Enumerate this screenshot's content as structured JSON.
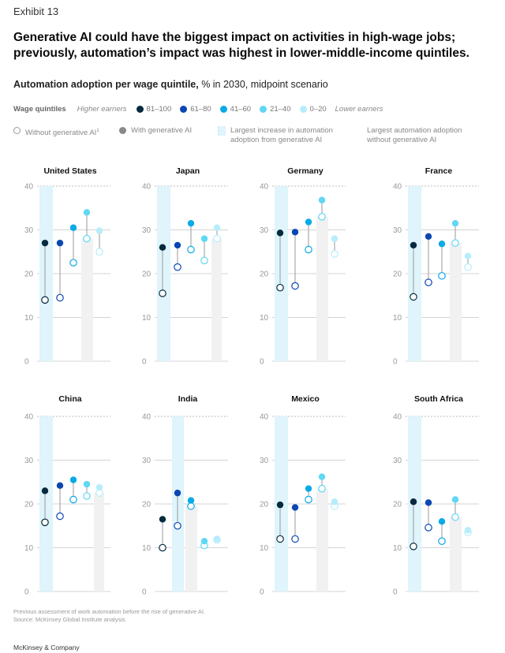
{
  "exhibit": "Exhibit 13",
  "title": "Generative AI could have the biggest impact on activities in high-wage jobs; previously, automation’s impact was highest in lower-middle-income quintiles.",
  "subtitle_bold": "Automation adoption per wage quintile,",
  "subtitle_rest": " % in 2030, midpoint scenario",
  "legend": {
    "label": "Wage quintiles",
    "higher": "Higher earners",
    "lower": "Lower earners",
    "quintiles": [
      {
        "label": "81–100",
        "color": "#062a3e"
      },
      {
        "label": "61–80",
        "color": "#0a47b4"
      },
      {
        "label": "41–60",
        "color": "#0aaae6"
      },
      {
        "label": "21–40",
        "color": "#5fd7f5"
      },
      {
        "label": "0–20",
        "color": "#b6edfb"
      }
    ],
    "without_label": "Without generative AI",
    "without_sup": "1",
    "with_label": "With generative AI",
    "largest_increase_1": "Largest increase in automation",
    "largest_increase_2": "adoption from generative AI",
    "largest_without_1": "Largest automation adoption",
    "largest_without_2": "without generative AI"
  },
  "footnote_1": "Previous assessment of work automation before the rise of generative AI.",
  "footnote_2": "Source: McKinsey Global Institute analysis",
  "brand": "McKinsey & Company",
  "chart_data": {
    "type": "scatter",
    "y_axis": {
      "min": 0,
      "max": 40,
      "ticks": [
        0,
        10,
        20,
        30,
        40
      ]
    },
    "series_names": [
      "81–100",
      "61–80",
      "41–60",
      "21–40",
      "0–20"
    ],
    "countries": [
      {
        "name": "United States",
        "without": [
          14,
          14.5,
          22.5,
          28,
          25
        ],
        "with": [
          27,
          27,
          30.5,
          34,
          29.8
        ],
        "largest_increase": 0,
        "largest_without": 3
      },
      {
        "name": "Japan",
        "without": [
          15.5,
          21.5,
          25.5,
          23,
          28
        ],
        "with": [
          26,
          26.5,
          31.5,
          28,
          30.5
        ],
        "largest_increase": 0,
        "largest_without": 4
      },
      {
        "name": "Germany",
        "without": [
          16.8,
          17.2,
          25.5,
          33,
          24.5
        ],
        "with": [
          29.3,
          29.5,
          31.8,
          36.8,
          28
        ],
        "largest_increase": 0,
        "largest_without": 3
      },
      {
        "name": "France",
        "without": [
          14.7,
          18,
          19.5,
          27,
          21.5
        ],
        "with": [
          26.5,
          28.5,
          26.8,
          31.5,
          24
        ],
        "largest_increase": 0,
        "largest_without": 3
      },
      {
        "name": "China",
        "without": [
          15.8,
          17.2,
          21,
          21.8,
          22.5
        ],
        "with": [
          23,
          24.2,
          25.5,
          24.5,
          23.8
        ],
        "largest_increase": 0,
        "largest_without": 4
      },
      {
        "name": "India",
        "without": [
          10,
          15,
          19.5,
          10.5,
          11.8
        ],
        "with": [
          16.5,
          22.5,
          20.8,
          11.5,
          12
        ],
        "largest_increase": 1,
        "largest_without": 2
      },
      {
        "name": "Mexico",
        "without": [
          12,
          12,
          21,
          23.5,
          19.5
        ],
        "with": [
          19.8,
          19.2,
          23.5,
          26.2,
          20.5
        ],
        "largest_increase": 0,
        "largest_without": 3
      },
      {
        "name": "South Africa",
        "without": [
          10.3,
          14.6,
          11.5,
          17,
          13.5
        ],
        "with": [
          20.5,
          20.3,
          16,
          21,
          14
        ],
        "largest_increase": 0,
        "largest_without": 3
      }
    ]
  }
}
